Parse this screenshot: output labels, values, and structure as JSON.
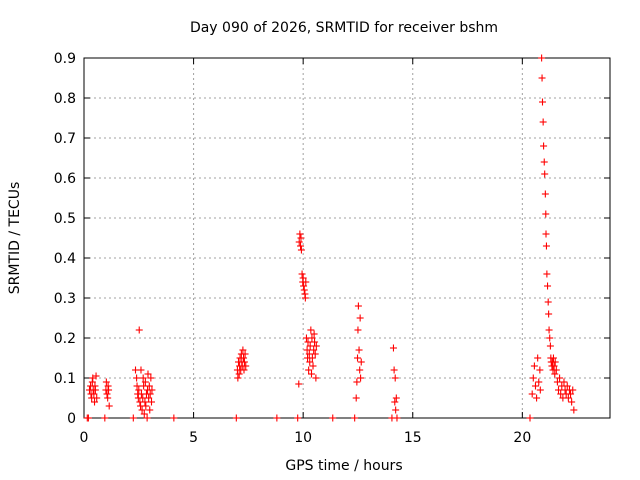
{
  "chart_data": {
    "type": "scatter",
    "title": "Day 090 of 2026, SRMTID for receiver bshm",
    "xlabel": "GPS time / hours",
    "ylabel": "SRMTID / TECUs",
    "xlim": [
      0,
      24
    ],
    "ylim": [
      0,
      0.9
    ],
    "xticks": [
      0,
      5,
      10,
      15,
      20
    ],
    "yticks": [
      0,
      0.1,
      0.2,
      0.3,
      0.4,
      0.5,
      0.6,
      0.7,
      0.8,
      0.9
    ],
    "grid": true,
    "marker": "+",
    "color": "#ff0000",
    "series": [
      {
        "name": "SRMTID",
        "points": [
          [
            0.15,
            0.0
          ],
          [
            0.2,
            0.0
          ],
          [
            0.25,
            0.07
          ],
          [
            0.3,
            0.08
          ],
          [
            0.32,
            0.06
          ],
          [
            0.35,
            0.05
          ],
          [
            0.38,
            0.09
          ],
          [
            0.4,
            0.1
          ],
          [
            0.42,
            0.07
          ],
          [
            0.45,
            0.06
          ],
          [
            0.48,
            0.04
          ],
          [
            0.5,
            0.08
          ],
          [
            0.52,
            0.07
          ],
          [
            0.55,
            0.105
          ],
          [
            0.58,
            0.05
          ],
          [
            0.95,
            0.0
          ],
          [
            1.0,
            0.07
          ],
          [
            1.02,
            0.09
          ],
          [
            1.05,
            0.06
          ],
          [
            1.08,
            0.05
          ],
          [
            1.1,
            0.08
          ],
          [
            1.12,
            0.07
          ],
          [
            1.15,
            0.03
          ],
          [
            2.25,
            0.0
          ],
          [
            2.35,
            0.12
          ],
          [
            2.4,
            0.1
          ],
          [
            2.42,
            0.08
          ],
          [
            2.45,
            0.06
          ],
          [
            2.48,
            0.05
          ],
          [
            2.5,
            0.07
          ],
          [
            2.52,
            0.22
          ],
          [
            2.55,
            0.04
          ],
          [
            2.58,
            0.03
          ],
          [
            2.6,
            0.12
          ],
          [
            2.62,
            0.06
          ],
          [
            2.65,
            0.02
          ],
          [
            2.68,
            0.05
          ],
          [
            2.7,
            0.1
          ],
          [
            2.72,
            0.08
          ],
          [
            2.75,
            0.01
          ],
          [
            2.78,
            0.04
          ],
          [
            2.8,
            0.09
          ],
          [
            2.82,
            0.03
          ],
          [
            2.85,
            0.06
          ],
          [
            2.88,
            0.0
          ],
          [
            2.9,
            0.07
          ],
          [
            2.92,
            0.11
          ],
          [
            2.95,
            0.05
          ],
          [
            2.98,
            0.08
          ],
          [
            3.0,
            0.02
          ],
          [
            3.02,
            0.06
          ],
          [
            3.05,
            0.1
          ],
          [
            3.08,
            0.04
          ],
          [
            3.1,
            0.07
          ],
          [
            4.1,
            0.0
          ],
          [
            6.95,
            0.0
          ],
          [
            7.0,
            0.12
          ],
          [
            7.02,
            0.1
          ],
          [
            7.05,
            0.14
          ],
          [
            7.08,
            0.11
          ],
          [
            7.1,
            0.13
          ],
          [
            7.12,
            0.15
          ],
          [
            7.15,
            0.12
          ],
          [
            7.18,
            0.16
          ],
          [
            7.2,
            0.14
          ],
          [
            7.22,
            0.13
          ],
          [
            7.25,
            0.17
          ],
          [
            7.28,
            0.15
          ],
          [
            7.3,
            0.12
          ],
          [
            7.32,
            0.14
          ],
          [
            7.35,
            0.16
          ],
          [
            7.38,
            0.13
          ],
          [
            8.8,
            0.0
          ],
          [
            9.75,
            0.0
          ],
          [
            9.8,
            0.085
          ],
          [
            9.82,
            0.44
          ],
          [
            9.85,
            0.46
          ],
          [
            9.88,
            0.43
          ],
          [
            9.9,
            0.45
          ],
          [
            9.92,
            0.42
          ],
          [
            9.95,
            0.36
          ],
          [
            9.98,
            0.34
          ],
          [
            10.0,
            0.35
          ],
          [
            10.02,
            0.33
          ],
          [
            10.05,
            0.32
          ],
          [
            10.08,
            0.31
          ],
          [
            10.1,
            0.3
          ],
          [
            10.12,
            0.34
          ],
          [
            10.15,
            0.2
          ],
          [
            10.18,
            0.17
          ],
          [
            10.2,
            0.15
          ],
          [
            10.22,
            0.19
          ],
          [
            10.25,
            0.12
          ],
          [
            10.28,
            0.16
          ],
          [
            10.3,
            0.14
          ],
          [
            10.32,
            0.18
          ],
          [
            10.35,
            0.22
          ],
          [
            10.38,
            0.11
          ],
          [
            10.4,
            0.2
          ],
          [
            10.42,
            0.15
          ],
          [
            10.45,
            0.13
          ],
          [
            10.48,
            0.17
          ],
          [
            10.5,
            0.21
          ],
          [
            10.52,
            0.19
          ],
          [
            10.55,
            0.16
          ],
          [
            10.58,
            0.1
          ],
          [
            10.6,
            0.18
          ],
          [
            11.35,
            0.0
          ],
          [
            12.35,
            0.0
          ],
          [
            12.42,
            0.05
          ],
          [
            12.45,
            0.09
          ],
          [
            12.48,
            0.15
          ],
          [
            12.5,
            0.22
          ],
          [
            12.52,
            0.28
          ],
          [
            12.55,
            0.17
          ],
          [
            12.58,
            0.12
          ],
          [
            12.6,
            0.25
          ],
          [
            12.62,
            0.1
          ],
          [
            12.65,
            0.14
          ],
          [
            14.05,
            0.0
          ],
          [
            14.12,
            0.175
          ],
          [
            14.15,
            0.12
          ],
          [
            14.18,
            0.04
          ],
          [
            14.2,
            0.1
          ],
          [
            14.22,
            0.02
          ],
          [
            14.25,
            0.05
          ],
          [
            14.28,
            0.0
          ],
          [
            20.35,
            0.0
          ],
          [
            20.45,
            0.06
          ],
          [
            20.5,
            0.1
          ],
          [
            20.55,
            0.13
          ],
          [
            20.6,
            0.08
          ],
          [
            20.65,
            0.05
          ],
          [
            20.7,
            0.15
          ],
          [
            20.75,
            0.09
          ],
          [
            20.8,
            0.12
          ],
          [
            20.82,
            0.07
          ],
          [
            20.88,
            0.9
          ],
          [
            20.9,
            0.85
          ],
          [
            20.92,
            0.79
          ],
          [
            20.95,
            0.74
          ],
          [
            20.97,
            0.68
          ],
          [
            21.0,
            0.64
          ],
          [
            21.02,
            0.61
          ],
          [
            21.05,
            0.56
          ],
          [
            21.07,
            0.51
          ],
          [
            21.08,
            0.46
          ],
          [
            21.1,
            0.43
          ],
          [
            21.12,
            0.36
          ],
          [
            21.15,
            0.33
          ],
          [
            21.18,
            0.29
          ],
          [
            21.2,
            0.26
          ],
          [
            21.22,
            0.22
          ],
          [
            21.25,
            0.2
          ],
          [
            21.28,
            0.18
          ],
          [
            21.3,
            0.15
          ],
          [
            21.32,
            0.14
          ],
          [
            21.35,
            0.13
          ],
          [
            21.38,
            0.14
          ],
          [
            21.4,
            0.12
          ],
          [
            21.42,
            0.15
          ],
          [
            21.45,
            0.13
          ],
          [
            21.48,
            0.11
          ],
          [
            21.5,
            0.14
          ],
          [
            21.55,
            0.12
          ],
          [
            21.6,
            0.09
          ],
          [
            21.65,
            0.07
          ],
          [
            21.7,
            0.1
          ],
          [
            21.75,
            0.06
          ],
          [
            21.8,
            0.08
          ],
          [
            21.85,
            0.05
          ],
          [
            21.9,
            0.09
          ],
          [
            21.95,
            0.07
          ],
          [
            22.0,
            0.06
          ],
          [
            22.05,
            0.08
          ],
          [
            22.1,
            0.05
          ],
          [
            22.15,
            0.07
          ],
          [
            22.2,
            0.06
          ],
          [
            22.25,
            0.04
          ],
          [
            22.3,
            0.07
          ],
          [
            22.35,
            0.02
          ]
        ]
      }
    ]
  }
}
